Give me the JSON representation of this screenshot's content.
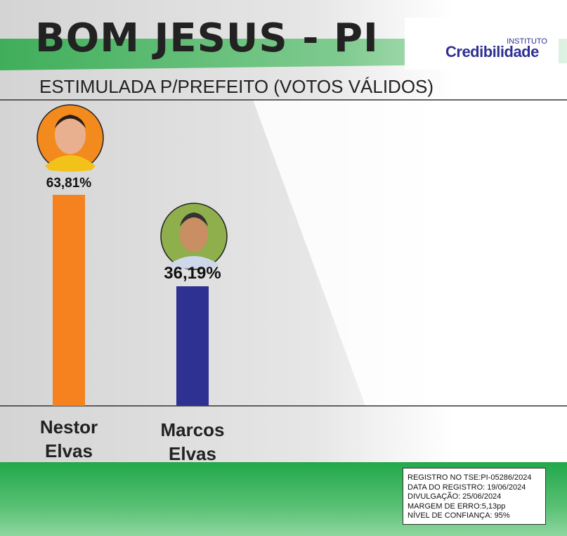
{
  "chart_data": {
    "type": "bar",
    "title": "BOM JESUS - PI",
    "subtitle": "ESTIMULADA P/PREFEITO (VOTOS VÁLIDOS)",
    "categories": [
      "Nestor Elvas",
      "Marcos Elvas"
    ],
    "values": [
      63.81,
      36.19
    ],
    "value_labels": [
      "63,81%",
      "36,19%"
    ],
    "colors": [
      "#f5821f",
      "#2e3192"
    ]
  },
  "logo": {
    "top": "INSTITUTO",
    "name": "Credibilidade"
  },
  "footer": {
    "lines": [
      "REGISTRO NO TSE:PI-05286/2024",
      "DATA DO REGISTRO: 19/06/2024",
      "DIVULGAÇÃO: 25/06/2024",
      "MARGEM DE ERRO:5,13pp",
      "NÍVEL DE CONFIANÇA: 95%"
    ]
  }
}
